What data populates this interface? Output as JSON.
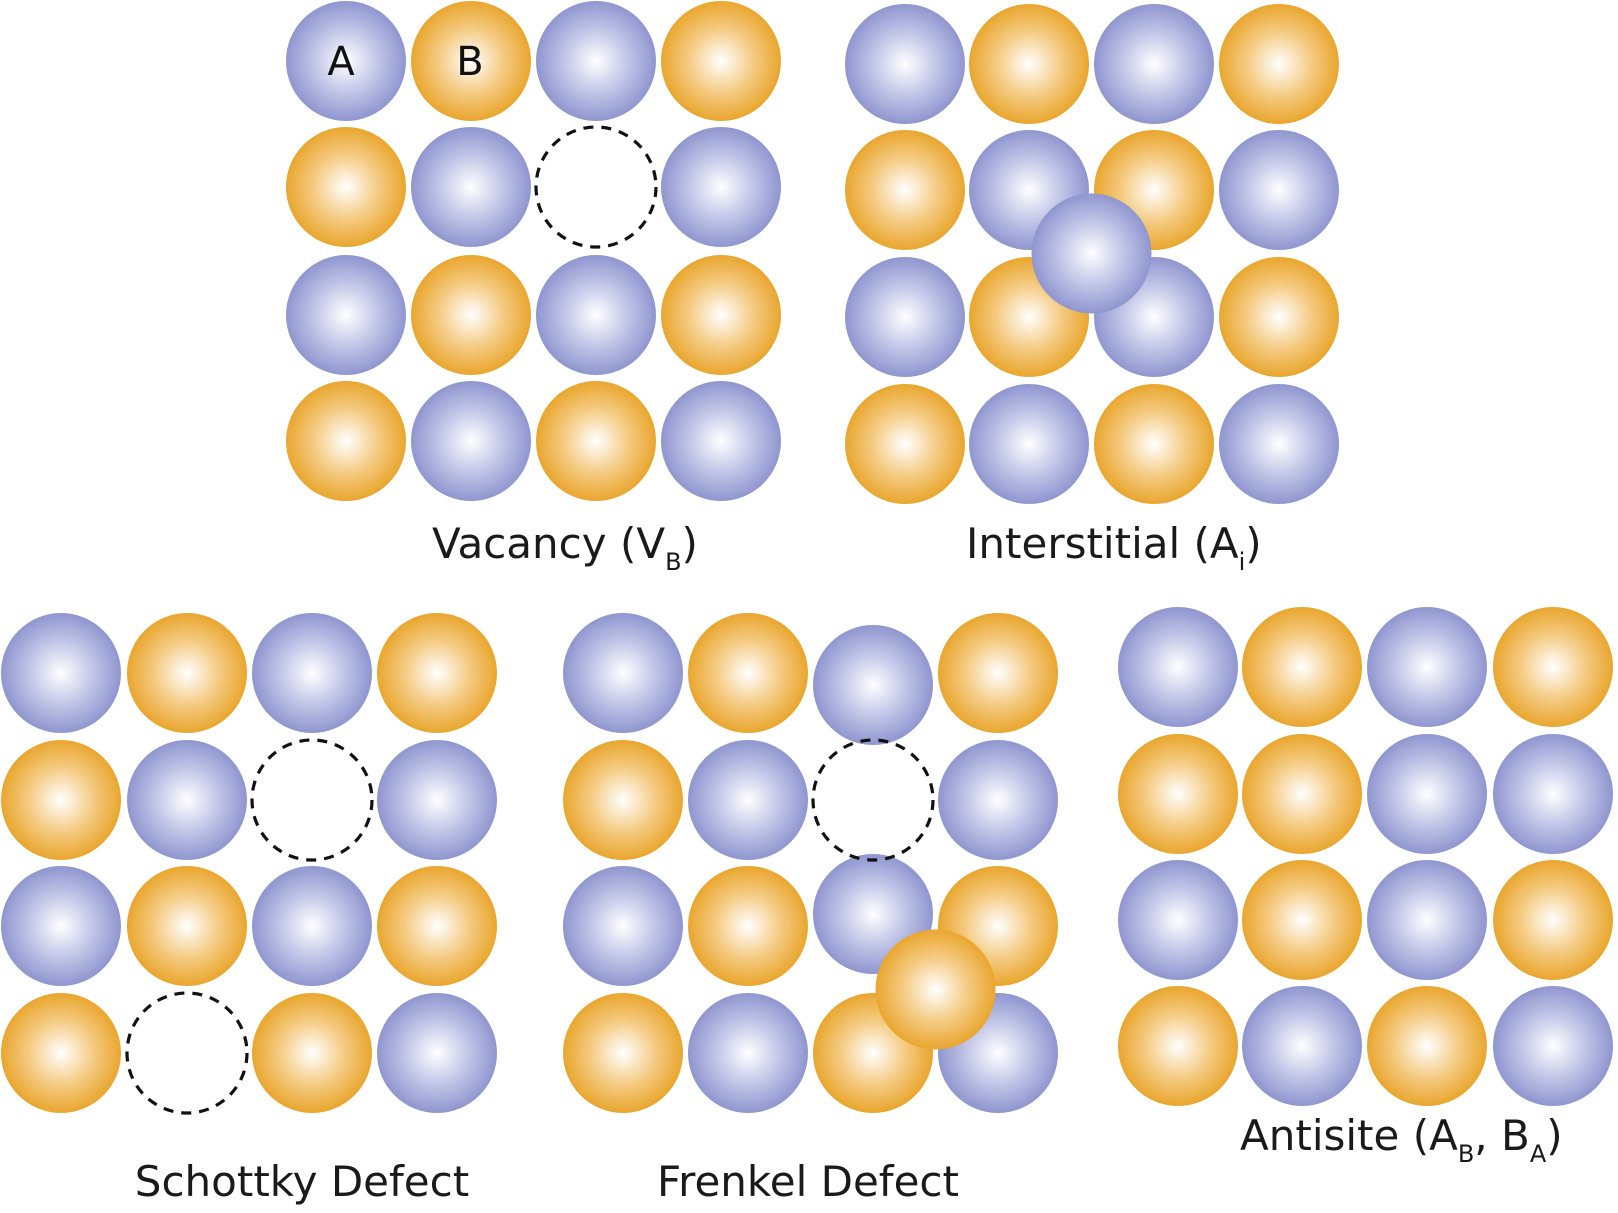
{
  "colors": {
    "atom_a": "#8f96cf",
    "atom_b": "#e9a62e"
  },
  "legend": {
    "a": "A",
    "b": "B"
  },
  "panels": [
    {
      "id": "vacancy",
      "caption": "Vacancy (V",
      "caption_sub": "B",
      "caption_end": ")",
      "grid": [
        [
          "A",
          "B",
          "A",
          "B"
        ],
        [
          "B",
          "A",
          "V",
          "A"
        ],
        [
          "A",
          "B",
          "A",
          "B"
        ],
        [
          "B",
          "A",
          "B",
          "A"
        ]
      ],
      "extras": []
    },
    {
      "id": "interstitial",
      "caption": "Interstitial (A",
      "caption_sub": "i",
      "caption_end": ")",
      "grid": [
        [
          "A",
          "B",
          "A",
          "B"
        ],
        [
          "B",
          "A",
          "B",
          "A"
        ],
        [
          "A",
          "B",
          "A",
          "B"
        ],
        [
          "B",
          "A",
          "B",
          "A"
        ]
      ],
      "extras": [
        {
          "type": "A",
          "between": [
            [
              1,
              1
            ],
            [
              2,
              2
            ]
          ]
        }
      ]
    },
    {
      "id": "schottky",
      "caption": "Schottky Defect",
      "grid": [
        [
          "A",
          "B",
          "A",
          "B"
        ],
        [
          "B",
          "A",
          "V",
          "A"
        ],
        [
          "A",
          "B",
          "A",
          "B"
        ],
        [
          "B",
          "V",
          "B",
          "A"
        ]
      ],
      "extras": []
    },
    {
      "id": "frenkel",
      "caption": "Frenkel Defect",
      "grid": [
        [
          "A",
          "B",
          "A",
          "B"
        ],
        [
          "B",
          "A",
          "V",
          "A"
        ],
        [
          "A",
          "B",
          "A",
          "B"
        ],
        [
          "B",
          "A",
          "B",
          "A"
        ]
      ],
      "extras": [
        {
          "type": "B",
          "between": [
            [
              2,
              2
            ],
            [
              3,
              3
            ]
          ]
        }
      ]
    },
    {
      "id": "antisite",
      "caption": "Antisite (A",
      "caption_sub": "B",
      "caption_mid": ", B",
      "caption_sub2": "A",
      "caption_end": ")",
      "grid": [
        [
          "A",
          "B",
          "A",
          "B"
        ],
        [
          "B",
          "B",
          "A",
          "A"
        ],
        [
          "A",
          "B",
          "A",
          "B"
        ],
        [
          "B",
          "A",
          "B",
          "A"
        ]
      ],
      "extras": []
    }
  ]
}
